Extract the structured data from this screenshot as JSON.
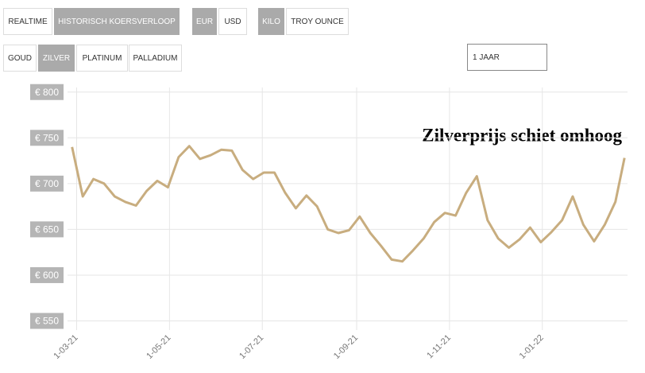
{
  "controls": {
    "row1": [
      "REALTIME",
      "HISTORISCH KOERSVERLOOP",
      "EUR",
      "USD",
      "KILO",
      "TROY OUNCE"
    ],
    "row2": [
      "GOUD",
      "ZILVER",
      "PLATINUM",
      "PALLADIUM"
    ],
    "period": "1 JAAR"
  },
  "chart_data": {
    "type": "line",
    "annotation": "Zilverprijs schiet omhoog",
    "color": "#c8ad7f",
    "x": [
      "2021-02-26",
      "2021-03-05",
      "2021-03-12",
      "2021-03-19",
      "2021-03-26",
      "2021-04-02",
      "2021-04-09",
      "2021-04-16",
      "2021-04-23",
      "2021-04-30",
      "2021-05-07",
      "2021-05-14",
      "2021-05-21",
      "2021-05-28",
      "2021-06-04",
      "2021-06-11",
      "2021-06-18",
      "2021-06-25",
      "2021-07-02",
      "2021-07-09",
      "2021-07-16",
      "2021-07-23",
      "2021-07-30",
      "2021-08-06",
      "2021-08-13",
      "2021-08-20",
      "2021-08-27",
      "2021-09-03",
      "2021-09-10",
      "2021-09-17",
      "2021-09-24",
      "2021-10-01",
      "2021-10-08",
      "2021-10-15",
      "2021-10-22",
      "2021-10-29",
      "2021-11-05",
      "2021-11-12",
      "2021-11-19",
      "2021-11-26",
      "2021-12-03",
      "2021-12-10",
      "2021-12-17",
      "2021-12-24",
      "2021-12-31",
      "2022-01-07",
      "2022-01-14",
      "2022-01-21",
      "2022-01-28",
      "2022-02-04",
      "2022-02-11",
      "2022-02-18",
      "2022-02-24"
    ],
    "values": [
      740,
      686,
      705,
      700,
      686,
      680,
      676,
      692,
      703,
      696,
      729,
      741,
      727,
      731,
      737,
      736,
      715,
      705,
      712,
      712,
      690,
      673,
      687,
      675,
      650,
      646,
      649,
      664,
      646,
      632,
      617,
      615,
      627,
      640,
      658,
      668,
      665,
      690,
      708,
      660,
      640,
      630,
      639,
      652,
      636,
      647,
      660,
      686,
      655,
      637,
      655,
      680,
      728
    ],
    "xlim": [
      "2021-02-23",
      "2022-02-26"
    ],
    "xticks": [
      {
        "value": "2021-03-01",
        "label": "1-03-21"
      },
      {
        "value": "2021-05-01",
        "label": "1-05-21"
      },
      {
        "value": "2021-07-01",
        "label": "1-07-21"
      },
      {
        "value": "2021-09-01",
        "label": "1-09-21"
      },
      {
        "value": "2021-11-01",
        "label": "1-11-21"
      },
      {
        "value": "2022-01-01",
        "label": "1-01-22"
      }
    ],
    "ylim": [
      540,
      805
    ],
    "yticks": [
      {
        "value": 550,
        "label": "€ 550"
      },
      {
        "value": 600,
        "label": "€ 600"
      },
      {
        "value": 650,
        "label": "€ 650"
      },
      {
        "value": 700,
        "label": "€ 700"
      },
      {
        "value": 750,
        "label": "€ 750"
      },
      {
        "value": 800,
        "label": "€ 800"
      }
    ],
    "grid": true
  }
}
